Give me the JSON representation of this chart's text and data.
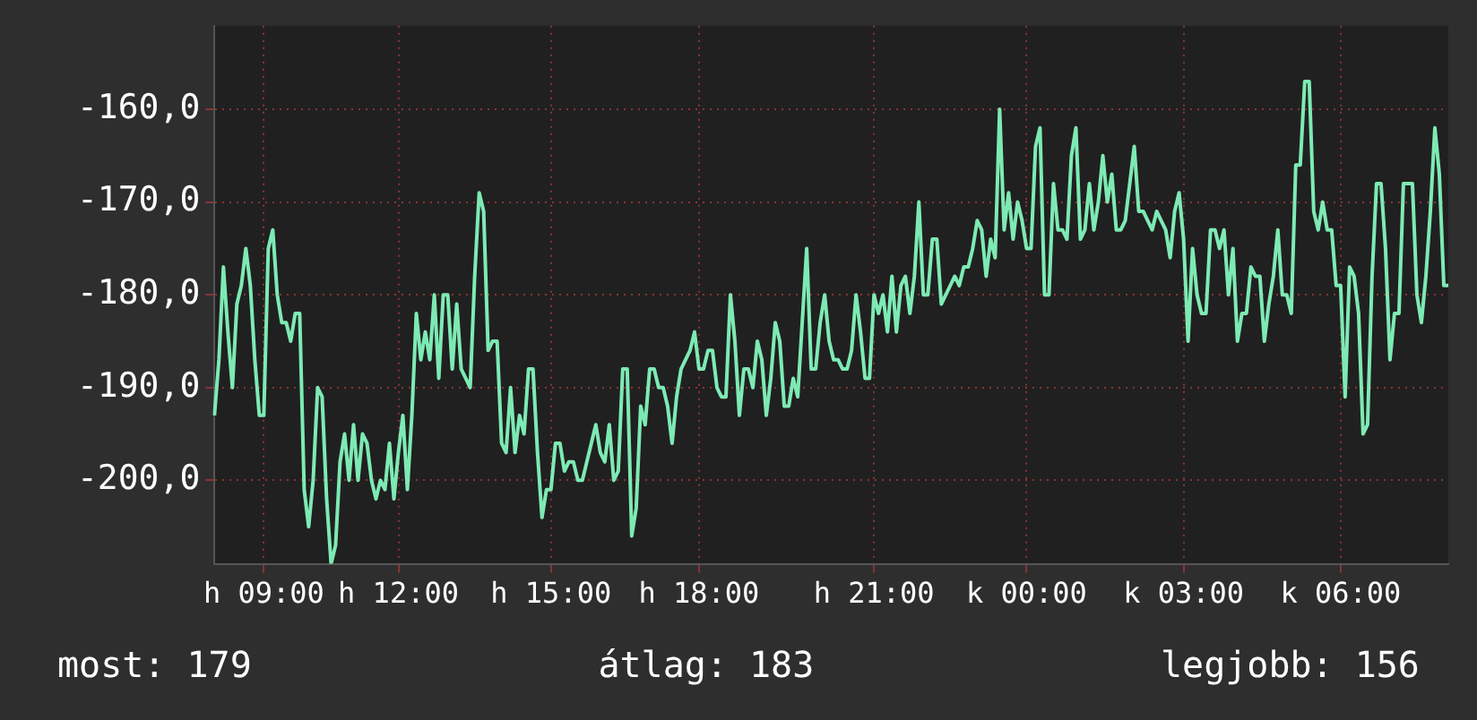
{
  "chart_data": {
    "type": "line",
    "ylim": [
      -209,
      -151
    ],
    "categories": [
      null,
      null,
      null,
      null,
      null,
      null,
      null,
      null,
      null,
      null,
      null,
      "h 09:00",
      null,
      null,
      null,
      null,
      null,
      null,
      null,
      null,
      null,
      null,
      null,
      null,
      null,
      null,
      null,
      null,
      null,
      null,
      null,
      null,
      null,
      null,
      null,
      null,
      null,
      null,
      null,
      null,
      null,
      "h 12:00",
      null,
      null,
      null,
      null,
      null,
      null,
      null,
      null,
      null,
      null,
      null,
      null,
      null,
      null,
      null,
      null,
      null,
      null,
      null,
      null,
      null,
      null,
      null,
      null,
      null,
      null,
      null,
      null,
      null,
      null,
      null,
      null,
      null,
      "h 15:00",
      null,
      null,
      null,
      null,
      null,
      null,
      null,
      null,
      null,
      null,
      null,
      null,
      null,
      null,
      null,
      null,
      null,
      null,
      null,
      null,
      null,
      null,
      null,
      null,
      null,
      null,
      null,
      null,
      null,
      null,
      null,
      null,
      "h 18:00",
      null,
      null,
      null,
      null,
      null,
      null,
      null,
      null,
      null,
      null,
      null,
      null,
      null,
      null,
      null,
      null,
      null,
      null,
      null,
      null,
      null,
      null,
      null,
      null,
      null,
      null,
      null,
      null,
      null,
      null,
      null,
      null,
      null,
      null,
      null,
      null,
      null,
      null,
      "h 21:00",
      null,
      null,
      null,
      null,
      null,
      null,
      null,
      null,
      null,
      null,
      null,
      null,
      null,
      null,
      null,
      null,
      null,
      null,
      null,
      null,
      null,
      null,
      null,
      null,
      null,
      null,
      null,
      null,
      null,
      null,
      null,
      null,
      null,
      "k 00:00",
      null,
      null,
      null,
      null,
      null,
      null,
      null,
      null,
      null,
      null,
      null,
      null,
      null,
      null,
      null,
      null,
      null,
      null,
      null,
      null,
      null,
      null,
      null,
      null,
      null,
      null,
      null,
      null,
      null,
      null,
      null,
      null,
      null,
      null,
      "k 03:00",
      null,
      null,
      null,
      null,
      null,
      null,
      null,
      null,
      null,
      null,
      null,
      null,
      null,
      null,
      null,
      null,
      null,
      null,
      null,
      null,
      null,
      null,
      null,
      null,
      null,
      null,
      null,
      null,
      null,
      null,
      null,
      null,
      null,
      null,
      "k 06:00",
      null,
      null,
      null,
      null,
      null,
      null,
      null,
      null,
      null,
      null,
      null,
      null,
      null,
      null,
      null,
      null,
      null,
      null,
      null,
      null,
      null,
      null,
      null,
      null
    ],
    "yticks": [
      {
        "value": -200,
        "label": "-200,0"
      },
      {
        "value": -190,
        "label": "-190,0"
      },
      {
        "value": -180,
        "label": "-180,0"
      },
      {
        "value": -170,
        "label": "-170,0"
      },
      {
        "value": -160,
        "label": "-160,0"
      }
    ],
    "grid": true,
    "annotations": [
      "most: 179",
      "átlag: 183",
      "legjobb: 156"
    ],
    "series": [
      {
        "color": "#7deab4",
        "values": [
          -193,
          -187,
          -177,
          -184,
          -190,
          -181,
          -179,
          -175,
          -179,
          -187,
          -193,
          -193,
          -175,
          -173,
          -180,
          -183,
          -183,
          -185,
          -182,
          -182,
          -201,
          -205,
          -200,
          -190,
          -191,
          -202,
          -209,
          -207,
          -198,
          -195,
          -200,
          -194,
          -200,
          -195,
          -196,
          -200,
          -202,
          -200,
          -201,
          -196,
          -202,
          -197,
          -193,
          -201,
          -193,
          -182,
          -187,
          -184,
          -187,
          -180,
          -189,
          -180,
          -180,
          -188,
          -181,
          -188,
          -189,
          -190,
          -178,
          -169,
          -171,
          -186,
          -185,
          -185,
          -196,
          -197,
          -190,
          -197,
          -193,
          -195,
          -188,
          -188,
          -197,
          -204,
          -201,
          -201,
          -196,
          -196,
          -199,
          -198,
          -198,
          -200,
          -200,
          -198,
          -196,
          -194,
          -197,
          -198,
          -194,
          -200,
          -199,
          -188,
          -188,
          -206,
          -203,
          -192,
          -194,
          -188,
          -188,
          -190,
          -190,
          -192,
          -196,
          -191,
          -188,
          -187,
          -186,
          -184,
          -188,
          -188,
          -186,
          -186,
          -190,
          -191,
          -191,
          -180,
          -185,
          -193,
          -188,
          -188,
          -190,
          -185,
          -187,
          -193,
          -189,
          -183,
          -185,
          -192,
          -192,
          -189,
          -191,
          -183,
          -175,
          -188,
          -188,
          -183,
          -180,
          -185,
          -187,
          -187,
          -188,
          -188,
          -186,
          -180,
          -184,
          -189,
          -189,
          -180,
          -182,
          -180,
          -184,
          -178,
          -184,
          -179,
          -178,
          -182,
          -178,
          -170,
          -180,
          -180,
          -174,
          -174,
          -181,
          -180,
          -179,
          -178,
          -179,
          -177,
          -177,
          -175,
          -172,
          -173,
          -178,
          -174,
          -176,
          -160,
          -173,
          -169,
          -174,
          -170,
          -172,
          -175,
          -175,
          -164,
          -162,
          -180,
          -180,
          -168,
          -173,
          -173,
          -174,
          -165,
          -162,
          -174,
          -173,
          -168,
          -173,
          -170,
          -165,
          -170,
          -167,
          -173,
          -173,
          -172,
          -168,
          -164,
          -171,
          -171,
          -172,
          -173,
          -171,
          -172,
          -173,
          -176,
          -171,
          -169,
          -174,
          -185,
          -175,
          -180,
          -182,
          -182,
          -173,
          -173,
          -175,
          -173,
          -180,
          -175,
          -185,
          -182,
          -182,
          -177,
          -178,
          -178,
          -185,
          -181,
          -178,
          -173,
          -180,
          -180,
          -182,
          -166,
          -166,
          -157,
          -157,
          -171,
          -173,
          -170,
          -173,
          -173,
          -179,
          -179,
          -191,
          -177,
          -178,
          -182,
          -195,
          -194,
          -178,
          -168,
          -168,
          -175,
          -187,
          -182,
          -182,
          -168,
          -168,
          -168,
          -180,
          -183,
          -178,
          -171,
          -162,
          -167,
          -179,
          -179
        ]
      }
    ]
  }
}
